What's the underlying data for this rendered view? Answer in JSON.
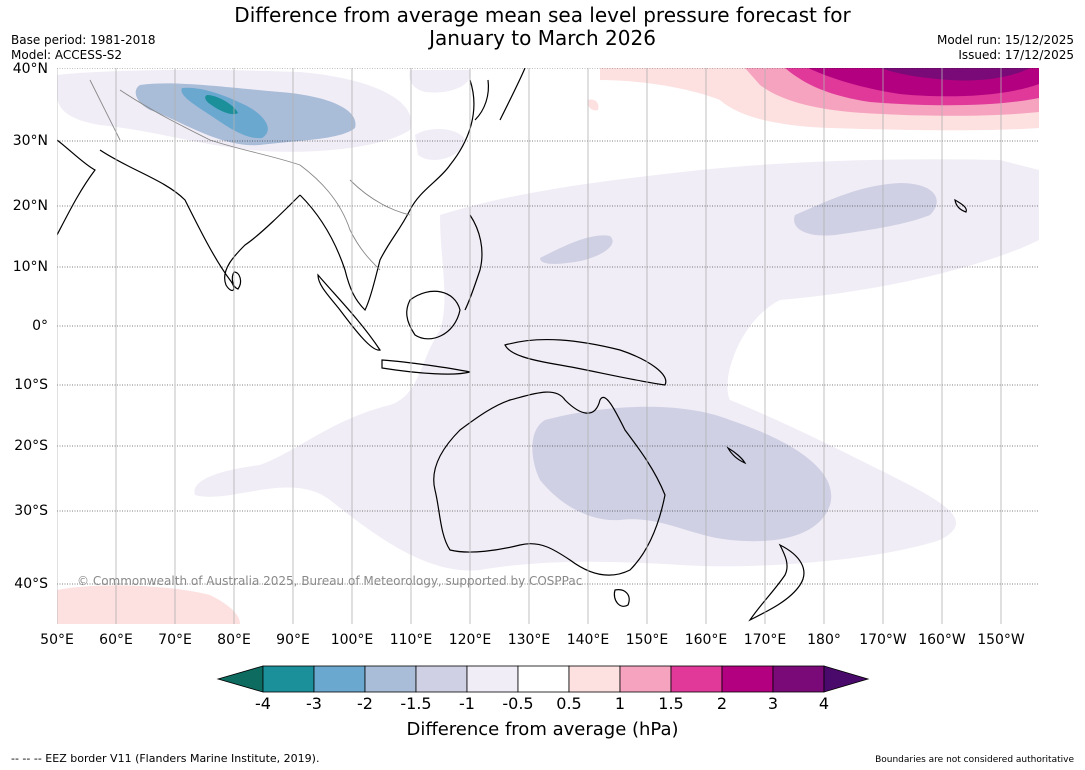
{
  "title": "Difference from average mean sea level pressure forecast for January to March 2026",
  "title_line1": "Difference from average mean sea level pressure forecast for",
  "title_line2": "January to March 2026",
  "meta_left": {
    "base_period": "Base period: 1981-2018",
    "model": "Model: ACCESS-S2"
  },
  "meta_right": {
    "model_run": "Model run: 15/12/2025",
    "issued": "Issued: 17/12/2025"
  },
  "map": {
    "lat_labels": [
      "40°N",
      "30°N",
      "20°N",
      "10°N",
      "0°",
      "10°S",
      "20°S",
      "30°S",
      "40°S"
    ],
    "lon_labels": [
      "50°E",
      "60°E",
      "70°E",
      "80°E",
      "90°E",
      "100°E",
      "110°E",
      "120°E",
      "130°E",
      "140°E",
      "150°E",
      "160°E",
      "170°E",
      "180°",
      "170°W",
      "160°W",
      "150°W"
    ],
    "copyright": "© Commonwealth of Australia 2025, Bureau of Meteorology, supported by COSPPac"
  },
  "colorbar": {
    "label": "Difference from average (hPa)",
    "ticks": [
      "-4",
      "-3",
      "-2",
      "-1.5",
      "-1",
      "-0.5",
      "0.5",
      "1",
      "1.5",
      "2",
      "3",
      "4"
    ],
    "colors": {
      "below_-4": "#0e6b5f",
      "-4_to_-3": "#1b8f9a",
      "-3_to_-2": "#6aa8d0",
      "-2_to_-1.5": "#a9bcd8",
      "-1.5_to_-1": "#cfd0e4",
      "-1_to_-0.5": "#f1edf6",
      "-0.5_to_0.5": "#ffffff",
      "0.5_to_1": "#fde0e0",
      "1_to_1.5": "#f6a3bf",
      "1.5_to_2": "#e0399a",
      "2_to_3": "#b20080",
      "3_to_4": "#7a0a78",
      "above_4": "#4a0a6b"
    }
  },
  "footer": {
    "eez": "--  --  -- EEZ border V11 (Flanders Marine Institute, 2019).",
    "disclaimer": "Boundaries are not considered authoritative"
  }
}
